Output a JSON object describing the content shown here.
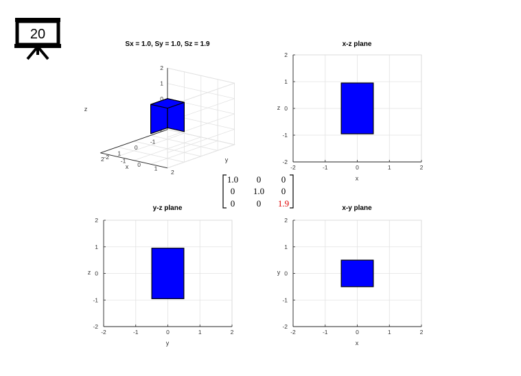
{
  "slide": {
    "number": "20",
    "icon": "presentation-board-icon"
  },
  "matrix": {
    "rows": [
      [
        "1.0",
        "0",
        "0"
      ],
      [
        "0",
        "1.0",
        "0"
      ],
      [
        "0",
        "0",
        "1.9"
      ]
    ],
    "highlight_color": "#e00000"
  },
  "colors": {
    "box_face": "#0000ff",
    "box_edge": "#000000",
    "grid": "#e2e2e2"
  },
  "chart_data": [
    {
      "type": "3d-box",
      "title": "Sx = 1.0, Sy = 1.0, Sz = 1.9",
      "xlabel": "x",
      "ylabel": "y",
      "zlabel": "z",
      "xlim": [
        -2,
        2
      ],
      "ylim": [
        -2,
        2
      ],
      "zlim": [
        -2,
        2
      ],
      "xticks": [
        "-1",
        "0",
        "1",
        "2"
      ],
      "yticks": [
        "-2",
        "-1",
        "0",
        "1",
        "2"
      ],
      "zticks": [
        "-2",
        "-1",
        "0",
        "1",
        "2"
      ],
      "box": {
        "x": [
          -0.5,
          0.5
        ],
        "y": [
          -0.5,
          0.5
        ],
        "z": [
          -0.95,
          0.95
        ]
      },
      "grid": true
    },
    {
      "type": "rect",
      "title": "x-z plane",
      "xlabel": "x",
      "ylabel": "z",
      "xlim": [
        -2,
        2
      ],
      "ylim": [
        -2,
        2
      ],
      "xticks": [
        "-2",
        "-1",
        "0",
        "1",
        "2"
      ],
      "yticks": [
        "-2",
        "-1",
        "0",
        "1",
        "2"
      ],
      "rect": {
        "x": [
          -0.5,
          0.5
        ],
        "y": [
          -0.95,
          0.95
        ]
      },
      "grid": true
    },
    {
      "type": "rect",
      "title": "y-z plane",
      "xlabel": "y",
      "ylabel": "z",
      "xlim": [
        -2,
        2
      ],
      "ylim": [
        -2,
        2
      ],
      "xticks": [
        "-2",
        "-1",
        "0",
        "1",
        "2"
      ],
      "yticks": [
        "-2",
        "-1",
        "0",
        "1",
        "2"
      ],
      "rect": {
        "x": [
          -0.5,
          0.5
        ],
        "y": [
          -0.95,
          0.95
        ]
      },
      "grid": true
    },
    {
      "type": "rect",
      "title": "x-y plane",
      "xlabel": "x",
      "ylabel": "y",
      "xlim": [
        -2,
        2
      ],
      "ylim": [
        -2,
        2
      ],
      "xticks": [
        "-2",
        "-1",
        "0",
        "1",
        "2"
      ],
      "yticks": [
        "-2",
        "-1",
        "0",
        "1",
        "2"
      ],
      "rect": {
        "x": [
          -0.5,
          0.5
        ],
        "y": [
          -0.5,
          0.5
        ]
      },
      "grid": true
    }
  ]
}
